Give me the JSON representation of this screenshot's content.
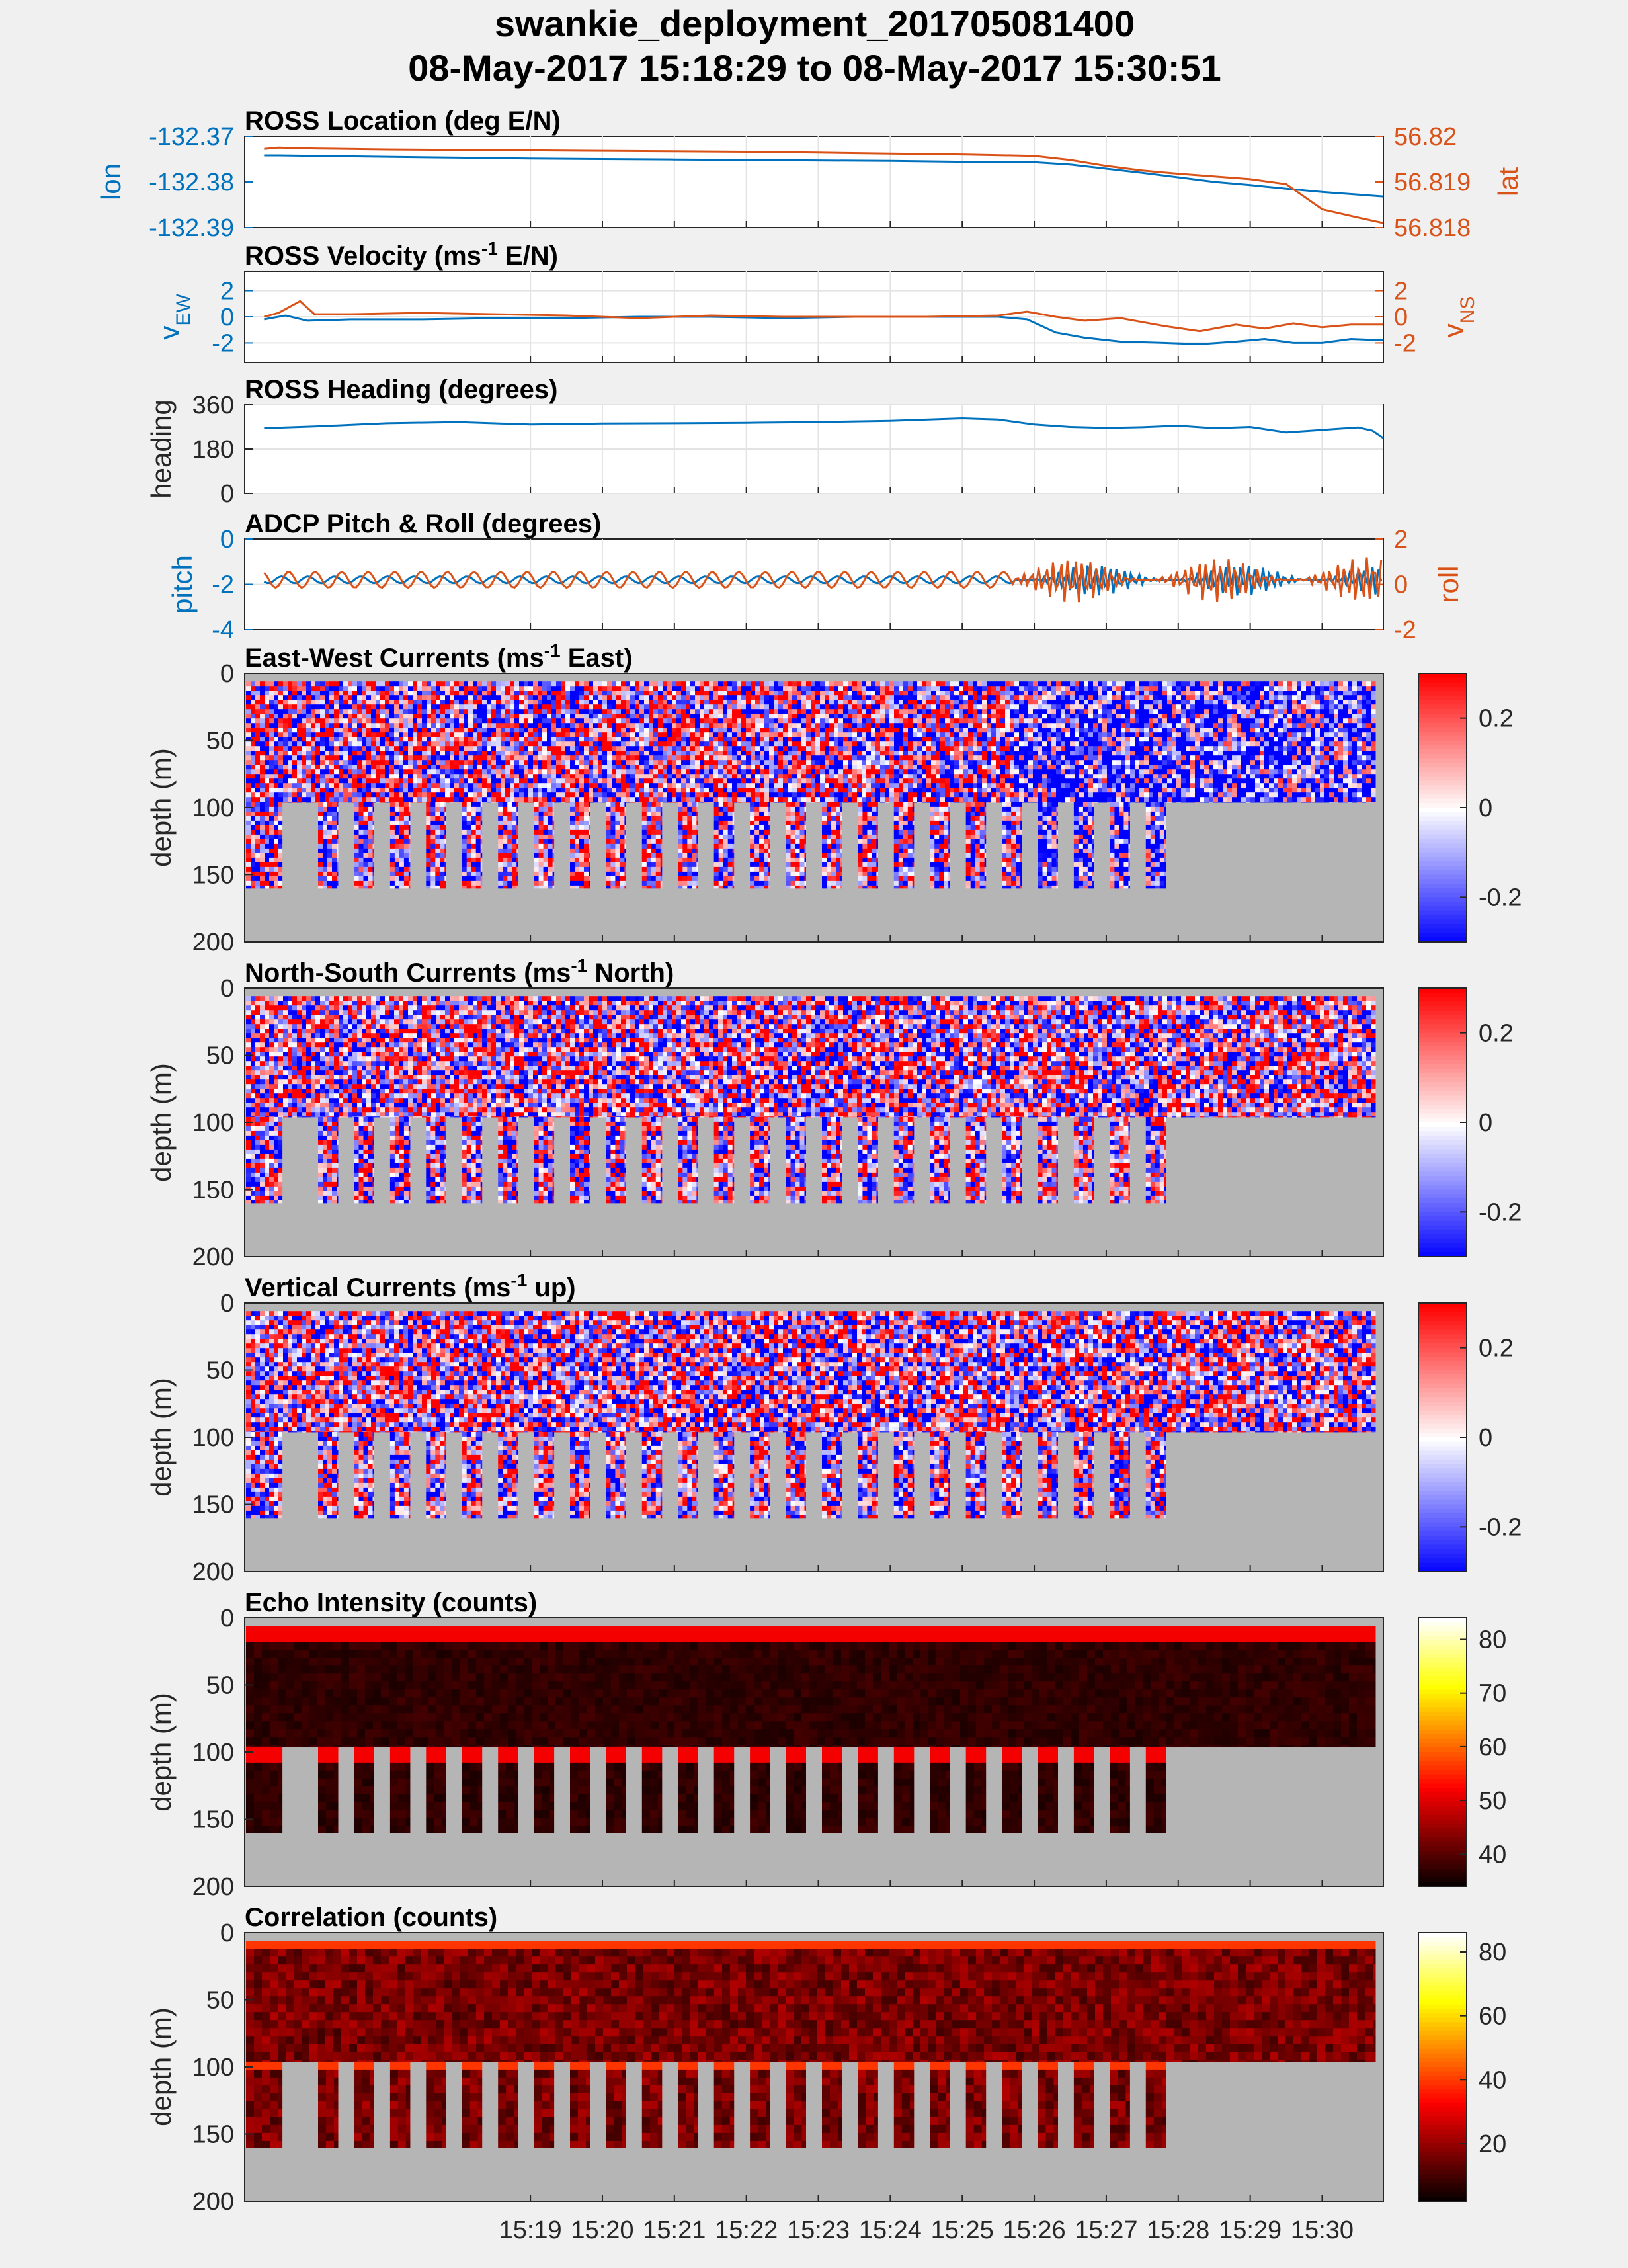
{
  "figure": {
    "title_line1": "swankie_deployment_201705081400",
    "title_line2": "08-May-2017 15:18:29 to 08-May-2017 15:30:51"
  },
  "colors": {
    "blue": "#0072BD",
    "orange": "#D95319",
    "nodata": "#b5b5b5",
    "background": "#f0f0f0"
  },
  "time_axis": {
    "ticks": [
      "15:19",
      "15:20",
      "15:21",
      "15:22",
      "15:23",
      "15:24",
      "15:25",
      "15:26",
      "15:27",
      "15:28",
      "15:29",
      "15:30"
    ]
  },
  "chart_data": [
    {
      "type": "line",
      "title": "ROSS Location (deg E/N)",
      "ylabel_left": "lon",
      "ylabel_right": "lat",
      "yticks_left": [
        "-132.37",
        "-132.38",
        "-132.39"
      ],
      "yticks_right": [
        "56.82",
        "56.819",
        "56.818"
      ],
      "ylim_left": [
        -132.39,
        -132.37
      ],
      "ylim_right": [
        56.818,
        56.82
      ],
      "series": [
        {
          "name": "lon",
          "axis": "left",
          "color": "blue",
          "x": [
            15.3,
            15.5,
            16.0,
            17.0,
            18.0,
            19.0,
            20.0,
            21.0,
            22.0,
            23.0,
            24.0,
            25.0,
            26.0,
            26.5,
            27.0,
            27.5,
            28.0,
            28.5,
            29.0,
            29.5,
            30.0,
            30.5,
            30.85
          ],
          "y": [
            -132.3742,
            -132.3742,
            -132.3743,
            -132.3745,
            -132.3747,
            -132.3749,
            -132.375,
            -132.3751,
            -132.3752,
            -132.3753,
            -132.3754,
            -132.3756,
            -132.3757,
            -132.3762,
            -132.3771,
            -132.378,
            -132.379,
            -132.38,
            -132.3807,
            -132.3815,
            -132.3822,
            -132.3828,
            -132.3832
          ]
        },
        {
          "name": "lat",
          "axis": "right",
          "color": "orange",
          "x": [
            15.3,
            15.5,
            16.0,
            17.0,
            18.0,
            19.0,
            20.0,
            21.0,
            22.0,
            23.0,
            24.0,
            25.0,
            26.0,
            26.5,
            27.0,
            27.5,
            28.0,
            28.5,
            29.0,
            29.5,
            30.0,
            30.5,
            30.85
          ],
          "y": [
            56.81972,
            56.81975,
            56.81973,
            56.81971,
            56.8197,
            56.81969,
            56.81968,
            56.81967,
            56.81966,
            56.81964,
            56.81962,
            56.8196,
            56.81957,
            56.81948,
            56.81935,
            56.81925,
            56.81918,
            56.81912,
            56.81906,
            56.81895,
            56.8184,
            56.81822,
            56.8181
          ]
        }
      ]
    },
    {
      "type": "line",
      "title": "ROSS Velocity (ms",
      "title_sup": "-1",
      "title_rest": " E/N)",
      "ylabel_left": "v",
      "ylabel_left_sub": "EW",
      "ylabel_right": "v",
      "ylabel_right_sub": "NS",
      "yticks_left": [
        "2",
        "0",
        "-2"
      ],
      "yticks_right": [
        "2",
        "0",
        "-2"
      ],
      "ylim": [
        -3.5,
        3.5
      ],
      "series": [
        {
          "name": "vEW",
          "axis": "left",
          "color": "blue",
          "x": [
            15.3,
            15.6,
            15.9,
            16.5,
            17.5,
            18.5,
            19.5,
            20.5,
            21.5,
            22.5,
            23.5,
            24.5,
            25.5,
            25.9,
            26.3,
            26.7,
            27.2,
            27.8,
            28.3,
            28.8,
            29.2,
            29.6,
            30.0,
            30.4,
            30.85
          ],
          "y": [
            -0.2,
            0.1,
            -0.3,
            -0.2,
            -0.2,
            -0.1,
            -0.1,
            0.0,
            0.0,
            -0.1,
            0.0,
            0.0,
            0.0,
            -0.2,
            -1.2,
            -1.6,
            -1.9,
            -2.0,
            -2.1,
            -1.9,
            -1.7,
            -2.0,
            -2.0,
            -1.7,
            -1.8
          ]
        },
        {
          "name": "vNS",
          "axis": "right",
          "color": "orange",
          "x": [
            15.3,
            15.5,
            15.8,
            16.0,
            16.5,
            17.5,
            18.5,
            19.5,
            20.5,
            21.5,
            22.5,
            23.5,
            24.5,
            25.5,
            25.9,
            26.3,
            26.7,
            27.2,
            27.8,
            28.3,
            28.8,
            29.2,
            29.6,
            30.0,
            30.4,
            30.85
          ],
          "y": [
            0.0,
            0.3,
            1.2,
            0.2,
            0.2,
            0.3,
            0.2,
            0.1,
            -0.1,
            0.1,
            0.0,
            0.0,
            0.0,
            0.1,
            0.4,
            0.0,
            -0.3,
            -0.1,
            -0.7,
            -1.1,
            -0.6,
            -0.9,
            -0.5,
            -0.8,
            -0.6,
            -0.6
          ]
        }
      ]
    },
    {
      "type": "line",
      "title": "ROSS Heading (degrees)",
      "ylabel": "heading",
      "yticks": [
        "360",
        "180",
        "0"
      ],
      "ylim": [
        0,
        360
      ],
      "series": [
        {
          "name": "heading",
          "color": "blue",
          "x": [
            15.3,
            16.0,
            17.0,
            18.0,
            19.0,
            20.0,
            21.0,
            22.0,
            23.0,
            24.0,
            25.0,
            25.5,
            26.0,
            26.5,
            27.0,
            27.5,
            28.0,
            28.5,
            29.0,
            29.5,
            30.0,
            30.5,
            30.7,
            30.85
          ],
          "y": [
            265,
            272,
            285,
            290,
            280,
            284,
            285,
            287,
            290,
            295,
            305,
            300,
            280,
            270,
            266,
            269,
            275,
            265,
            270,
            248,
            258,
            268,
            255,
            225
          ]
        }
      ]
    },
    {
      "type": "line",
      "title": "ADCP Pitch & Roll (degrees)",
      "ylabel_left": "pitch",
      "ylabel_right": "roll",
      "yticks_left": [
        "0",
        "-2",
        "-4"
      ],
      "yticks_right": [
        "2",
        "0",
        "-2"
      ],
      "ylim_left": [
        -4,
        0
      ],
      "ylim_right": [
        -2,
        2
      ],
      "series": [
        {
          "name": "pitch",
          "axis": "left",
          "color": "blue",
          "mean": -1.8,
          "amplitude_calm": 0.15,
          "amplitude_active": 0.7
        },
        {
          "name": "roll",
          "axis": "right",
          "color": "orange",
          "mean": 0.2,
          "amplitude_calm": 0.35,
          "amplitude_active": 1.0
        }
      ]
    },
    {
      "type": "heatmap",
      "title": "East-West Currents (ms",
      "title_sup": "-1",
      "title_rest": " East)",
      "ylabel": "depth (m)",
      "yticks": [
        "0",
        "50",
        "100",
        "150",
        "200"
      ],
      "colormap": "blue-white-red",
      "clim": [
        -0.3,
        0.3
      ],
      "cbar_ticks": [
        "0.2",
        "0",
        "-0.2"
      ],
      "cbar_tick_values": [
        0.2,
        0,
        -0.2
      ]
    },
    {
      "type": "heatmap",
      "title": "North-South Currents (ms",
      "title_sup": "-1",
      "title_rest": " North)",
      "ylabel": "depth (m)",
      "yticks": [
        "0",
        "50",
        "100",
        "150",
        "200"
      ],
      "colormap": "blue-white-red",
      "clim": [
        -0.3,
        0.3
      ],
      "cbar_ticks": [
        "0.2",
        "0",
        "-0.2"
      ],
      "cbar_tick_values": [
        0.2,
        0,
        -0.2
      ]
    },
    {
      "type": "heatmap",
      "title": "Vertical Currents (ms",
      "title_sup": "-1",
      "title_rest": " up)",
      "ylabel": "depth (m)",
      "yticks": [
        "0",
        "50",
        "100",
        "150",
        "200"
      ],
      "colormap": "blue-white-red",
      "clim": [
        -0.3,
        0.3
      ],
      "cbar_ticks": [
        "0.2",
        "0",
        "-0.2"
      ],
      "cbar_tick_values": [
        0.2,
        0,
        -0.2
      ]
    },
    {
      "type": "heatmap",
      "title": "Echo Intensity (counts)",
      "ylabel": "depth (m)",
      "yticks": [
        "0",
        "50",
        "100",
        "150",
        "200"
      ],
      "colormap": "hot",
      "clim": [
        34,
        84
      ],
      "cbar_ticks": [
        "80",
        "70",
        "60",
        "50",
        "40"
      ],
      "cbar_tick_values": [
        80,
        70,
        60,
        50,
        40
      ]
    },
    {
      "type": "heatmap",
      "title": "Correlation (counts)",
      "ylabel": "depth (m)",
      "yticks": [
        "0",
        "50",
        "100",
        "150",
        "200"
      ],
      "colormap": "hot",
      "clim": [
        2,
        86
      ],
      "cbar_ticks": [
        "80",
        "60",
        "40",
        "20"
      ],
      "cbar_tick_values": [
        80,
        60,
        40,
        20
      ]
    }
  ]
}
